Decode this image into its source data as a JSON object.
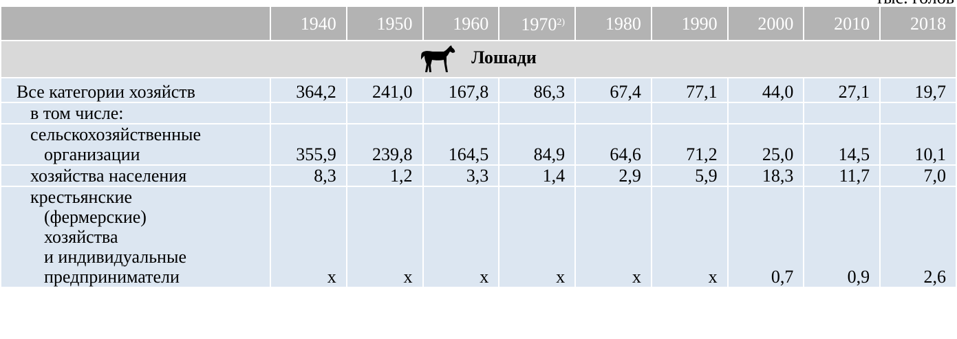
{
  "unit": "тыс. голов",
  "table": {
    "columns": [
      {
        "year": "1940"
      },
      {
        "year": "1950"
      },
      {
        "year": "1960"
      },
      {
        "year": "1970",
        "note": "2)"
      },
      {
        "year": "1980"
      },
      {
        "year": "1990"
      },
      {
        "year": "2000"
      },
      {
        "year": "2010"
      },
      {
        "year": "2018"
      }
    ],
    "section": "Лошади",
    "rows": [
      {
        "label_lines": [
          "Все категории хозяйств"
        ],
        "values": [
          "364,2",
          "241,0",
          "167,8",
          "86,3",
          "67,4",
          "77,1",
          "44,0",
          "27,1",
          "19,7"
        ]
      },
      {
        "label_lines": [
          "в том числе:"
        ],
        "values": []
      },
      {
        "label_lines": [
          "сельскохозяйственные",
          "организации"
        ],
        "values": [
          "355,9",
          "239,8",
          "164,5",
          "84,9",
          "64,6",
          "71,2",
          "25,0",
          "14,5",
          "10,1"
        ]
      },
      {
        "label_lines": [
          "хозяйства населения"
        ],
        "values": [
          "8,3",
          "1,2",
          "3,3",
          "1,4",
          "2,9",
          "5,9",
          "18,3",
          "11,7",
          "7,0"
        ]
      },
      {
        "label_lines": [
          "крестьянские",
          "(фермерские)",
          "хозяйства",
          "и индивидуальные",
          "предприниматели"
        ],
        "values": [
          "x",
          "x",
          "x",
          "x",
          "x",
          "x",
          "0,7",
          "0,9",
          "2,6"
        ]
      }
    ]
  }
}
